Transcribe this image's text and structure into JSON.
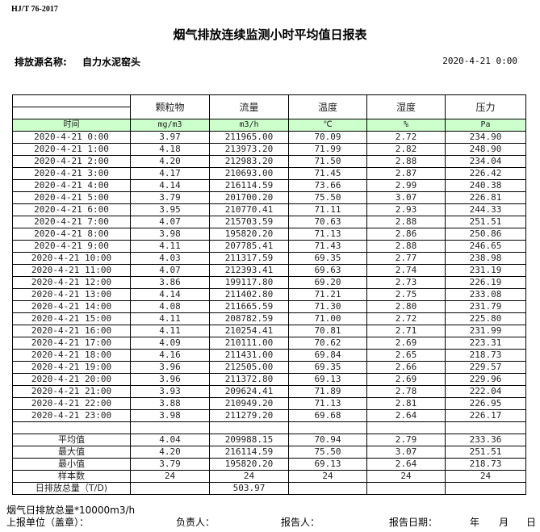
{
  "standard": "HJ/T  76-2017",
  "title": "烟气排放连续监测小时平均值日报表",
  "source_label": "排放源名称:",
  "source_value": "自力水泥窑头",
  "report_date": "2020-4-21 0:00",
  "columns": [
    "颗粒物",
    "流量",
    "温度",
    "湿度",
    "压力"
  ],
  "time_label": "时间",
  "units": [
    "mg/m3",
    "m3/h",
    "℃",
    "%",
    "Pa"
  ],
  "rows": [
    [
      "2020-4-21 0:00",
      "3.97",
      "211965.00",
      "70.09",
      "2.72",
      "234.90"
    ],
    [
      "2020-4-21 1:00",
      "4.18",
      "213973.20",
      "71.99",
      "2.82",
      "248.90"
    ],
    [
      "2020-4-21 2:00",
      "4.20",
      "212983.20",
      "71.50",
      "2.88",
      "234.04"
    ],
    [
      "2020-4-21 3:00",
      "4.17",
      "210693.00",
      "71.45",
      "2.87",
      "226.42"
    ],
    [
      "2020-4-21 4:00",
      "4.14",
      "216114.59",
      "73.66",
      "2.99",
      "240.38"
    ],
    [
      "2020-4-21 5:00",
      "3.79",
      "201700.20",
      "75.50",
      "3.07",
      "226.81"
    ],
    [
      "2020-4-21 6:00",
      "3.95",
      "210770.41",
      "71.11",
      "2.93",
      "244.33"
    ],
    [
      "2020-4-21 7:00",
      "4.07",
      "215703.59",
      "70.63",
      "2.88",
      "251.51"
    ],
    [
      "2020-4-21 8:00",
      "3.98",
      "195820.20",
      "71.13",
      "2.86",
      "250.86"
    ],
    [
      "2020-4-21 9:00",
      "4.11",
      "207785.41",
      "71.43",
      "2.88",
      "246.65"
    ],
    [
      "2020-4-21 10:00",
      "4.03",
      "211317.59",
      "69.35",
      "2.77",
      "238.98"
    ],
    [
      "2020-4-21 11:00",
      "4.07",
      "212393.41",
      "69.63",
      "2.74",
      "231.19"
    ],
    [
      "2020-4-21 12:00",
      "3.86",
      "199117.80",
      "69.20",
      "2.73",
      "226.19"
    ],
    [
      "2020-4-21 13:00",
      "4.14",
      "211402.80",
      "71.21",
      "2.75",
      "233.08"
    ],
    [
      "2020-4-21 14:00",
      "4.08",
      "211665.59",
      "71.30",
      "2.80",
      "231.79"
    ],
    [
      "2020-4-21 15:00",
      "4.11",
      "208782.59",
      "71.00",
      "2.72",
      "225.80"
    ],
    [
      "2020-4-21 16:00",
      "4.11",
      "210254.41",
      "70.81",
      "2.71",
      "231.99"
    ],
    [
      "2020-4-21 17:00",
      "4.09",
      "210111.00",
      "70.62",
      "2.69",
      "223.31"
    ],
    [
      "2020-4-21 18:00",
      "4.16",
      "211431.00",
      "69.84",
      "2.65",
      "218.73"
    ],
    [
      "2020-4-21 19:00",
      "3.96",
      "212505.00",
      "69.35",
      "2.66",
      "229.57"
    ],
    [
      "2020-4-21 20:00",
      "3.96",
      "211372.80",
      "69.13",
      "2.69",
      "229.96"
    ],
    [
      "2020-4-21 21:00",
      "3.93",
      "209624.41",
      "71.89",
      "2.78",
      "222.04"
    ],
    [
      "2020-4-21 22:00",
      "3.88",
      "210949.20",
      "71.13",
      "2.81",
      "226.95"
    ],
    [
      "2020-4-21 23:00",
      "3.98",
      "211279.20",
      "69.68",
      "2.64",
      "226.17"
    ]
  ],
  "summary": [
    [
      "平均值",
      "4.04",
      "209988.15",
      "70.94",
      "2.79",
      "233.36"
    ],
    [
      "最大值",
      "4.20",
      "216114.59",
      "75.50",
      "3.07",
      "251.51"
    ],
    [
      "最小值",
      "3.79",
      "195820.20",
      "69.13",
      "2.64",
      "218.73"
    ],
    [
      "样本数",
      "24",
      "24",
      "24",
      "24",
      "24"
    ],
    [
      "日排放总量（T/D)",
      "",
      "503.97",
      "",
      "",
      ""
    ]
  ],
  "footer": {
    "note": "烟气日排放总量*10000m3/h",
    "unit_label": "上报单位（盖章）：",
    "responsible_label": "负责人：",
    "reporter_label": "报告人：",
    "report_date_label": "报告日期：",
    "year": "年",
    "month": "月",
    "day": "日"
  }
}
